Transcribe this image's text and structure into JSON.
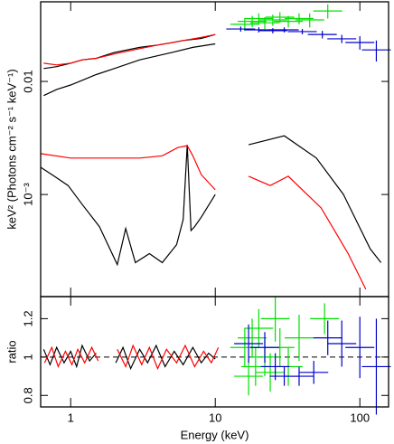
{
  "chart_data": [
    {
      "type": "line",
      "xlog": true,
      "ylog": true,
      "ylabel": "keV² (Photons cm⁻² s⁻¹ keV⁻¹)",
      "xlim": [
        0.62,
        158
      ],
      "ylim": [
        0.000125,
        0.0506
      ],
      "yticks": [
        0.01,
        {
          "value": 0.001,
          "label": "10⁻³"
        }
      ],
      "series": [
        {
          "style": "line",
          "color": "#000000",
          "x": [
            0.62,
            0.77,
            0.96,
            1.19,
            1.58,
            2.1,
            2.4,
            2.8,
            3.5,
            4.3,
            5.4,
            6.0,
            6.4,
            6.8,
            7.2,
            8,
            10
          ],
          "values": [
            0.00174,
            0.00145,
            0.0012,
            0.00083,
            0.00052,
            0.00024,
            0.0005,
            0.00025,
            0.0003,
            0.00025,
            0.00036,
            0.0006,
            0.00275,
            0.00048,
            0.00052,
            0.00063,
            0.001
          ]
        },
        {
          "style": "line",
          "color": "#ff0000",
          "x": [
            0.62,
            1,
            2,
            3,
            4.3,
            5.5,
            6.4,
            7,
            8,
            10
          ],
          "values": [
            0.0023,
            0.0021,
            0.0021,
            0.0021,
            0.0022,
            0.0026,
            0.0027,
            0.0022,
            0.0015,
            0.0011
          ]
        },
        {
          "style": "line",
          "color": "#000000",
          "x": [
            17,
            30,
            50,
            77,
            118,
            140
          ],
          "values": [
            0.00275,
            0.0033,
            0.0021,
            0.001,
            0.00033,
            0.00025
          ]
        },
        {
          "style": "line",
          "color": "#ff0000",
          "x": [
            17,
            24,
            32,
            54,
            83,
            110
          ],
          "values": [
            0.00145,
            0.0012,
            0.00145,
            0.00076,
            0.0003,
            0.000145
          ]
        },
        {
          "style": "line",
          "color": "#000000",
          "x": [
            0.65,
            0.8,
            1,
            1.5,
            2,
            3,
            5,
            7,
            10
          ],
          "values": [
            0.0075,
            0.0085,
            0.0093,
            0.0115,
            0.013,
            0.0155,
            0.018,
            0.02,
            0.0215
          ]
        },
        {
          "style": "line",
          "color": "#000000",
          "x": [
            0.65,
            0.8,
            1,
            1.2,
            1.5,
            2,
            3,
            4,
            5,
            6,
            8,
            10
          ],
          "values": [
            0.013,
            0.0135,
            0.0145,
            0.0155,
            0.016,
            0.018,
            0.02,
            0.021,
            0.022,
            0.023,
            0.024,
            0.026
          ]
        },
        {
          "style": "line",
          "color": "#ff0000",
          "x": [
            0.65,
            0.8,
            1,
            1.2,
            1.5,
            2,
            3,
            4,
            5,
            6,
            8,
            10
          ],
          "values": [
            0.0145,
            0.014,
            0.0145,
            0.0155,
            0.016,
            0.0175,
            0.0195,
            0.021,
            0.022,
            0.023,
            0.0245,
            0.026
          ]
        },
        {
          "style": "errorbar",
          "color": "#00e000",
          "x": [
            16,
            18,
            20,
            22,
            25,
            28,
            32,
            38,
            45,
            60
          ],
          "values": [
            0.032,
            0.034,
            0.036,
            0.033,
            0.035,
            0.037,
            0.034,
            0.036,
            0.035,
            0.042
          ],
          "errors": [
            0.004,
            0.004,
            0.004,
            0.004,
            0.004,
            0.004,
            0.004,
            0.004,
            0.005,
            0.006
          ]
        },
        {
          "style": "errorbar",
          "color": "#0000cc",
          "x": [
            15,
            20,
            25,
            30,
            40,
            55,
            75,
            100,
            130
          ],
          "values": [
            0.0291,
            0.0286,
            0.0281,
            0.0286,
            0.0276,
            0.026,
            0.0238,
            0.0221,
            0.019
          ],
          "errors": [
            0.0015,
            0.0015,
            0.0015,
            0.0015,
            0.0015,
            0.002,
            0.002,
            0.003,
            0.004
          ]
        }
      ]
    },
    {
      "type": "line",
      "xlog": true,
      "xlabel": "Energy (keV)",
      "ylabel": "ratio",
      "xlim": [
        0.62,
        158
      ],
      "ylim": [
        0.74,
        1.315
      ],
      "xticks": [
        1,
        10,
        100
      ],
      "yticks": [
        0.8,
        1,
        1.2
      ],
      "reference_line": 1,
      "series": [
        {
          "style": "line",
          "color": "#000000",
          "x": [
            0.65,
            0.72,
            0.8,
            0.9,
            1,
            1.1,
            1.2,
            1.35,
            1.5,
            1.75,
            2.05,
            2.3,
            2.6,
            3,
            3.4,
            3.9,
            4.5,
            5.2,
            6,
            7,
            8,
            9,
            10
          ],
          "values": [
            1.04,
            0.96,
            1.05,
            0.97,
            1.03,
            0.95,
            1.06,
            0.98,
            1.02,
            null,
            0.97,
            1.05,
            0.94,
            1.04,
            0.97,
            1.06,
            0.95,
            1.03,
            0.96,
            1.05,
            0.97,
            1.02,
            0.99
          ]
        },
        {
          "style": "line",
          "color": "#ff0000",
          "x": [
            0.66,
            0.74,
            0.82,
            0.92,
            1.02,
            1.12,
            1.25,
            1.4,
            1.55,
            1.75,
            2.1,
            2.4,
            2.7,
            3.1,
            3.5,
            4,
            4.6,
            5.4,
            6.2,
            7.2,
            8.3,
            9.4,
            10.5
          ],
          "values": [
            0.97,
            1.05,
            0.95,
            1.03,
            0.96,
            1.04,
            0.97,
            1.05,
            0.98,
            null,
            1.04,
            0.95,
            1.06,
            0.96,
            1.05,
            0.94,
            1.04,
            0.97,
            1.06,
            0.95,
            1.03,
            0.97,
            1.05
          ]
        },
        {
          "style": "errorbar",
          "color": "#00e000",
          "x": [
            16,
            17,
            18,
            19,
            20,
            22,
            24,
            26,
            28,
            32,
            38,
            57
          ],
          "values": [
            1.05,
            0.9,
            1.1,
            0.95,
            1.15,
            1.0,
            0.92,
            1.2,
            1.05,
            0.95,
            1.1,
            1.2
          ],
          "errors": [
            0.1,
            0.1,
            0.1,
            0.1,
            0.1,
            0.1,
            0.1,
            0.12,
            0.1,
            0.1,
            0.12,
            0.08
          ]
        },
        {
          "style": "errorbar",
          "color": "#0000cc",
          "x": [
            17,
            22,
            26,
            30,
            38,
            48,
            60,
            75,
            100,
            130
          ],
          "values": [
            1.07,
            1.05,
            0.95,
            0.9,
            0.9,
            0.92,
            1.1,
            1.07,
            1.05,
            0.95
          ],
          "errors": [
            0.1,
            0.08,
            0.07,
            0.05,
            0.05,
            0.06,
            0.09,
            0.12,
            0.16,
            0.25
          ]
        }
      ]
    }
  ]
}
